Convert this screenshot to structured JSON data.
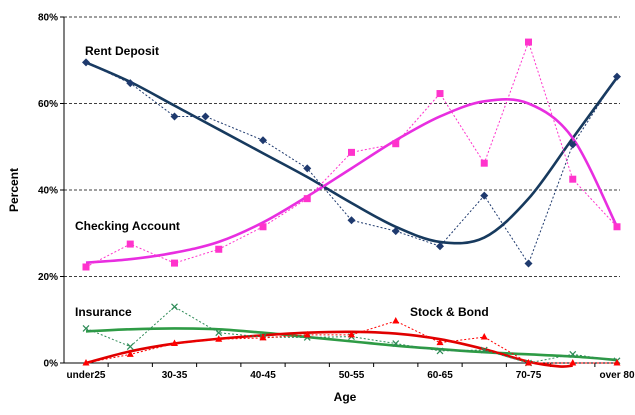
{
  "chart_data": {
    "type": "line",
    "title": "",
    "xlabel": "Age",
    "ylabel": "Percent",
    "ylim": [
      0,
      80
    ],
    "yticks": [
      "0%",
      "20%",
      "40%",
      "60%",
      "80%"
    ],
    "ytick_values": [
      0,
      20,
      40,
      60,
      80
    ],
    "x_positions": 13,
    "xtick_labels": [
      {
        "pos": 0,
        "label": "under25"
      },
      {
        "pos": 2,
        "label": "30-35"
      },
      {
        "pos": 4,
        "label": "40-45"
      },
      {
        "pos": 6,
        "label": "50-55"
      },
      {
        "pos": 8,
        "label": "60-65"
      },
      {
        "pos": 10,
        "label": "70-75"
      },
      {
        "pos": 12,
        "label": "over 80"
      }
    ],
    "grid": "horizontal dashed",
    "series": [
      {
        "name": "Rent Deposit",
        "color": "#1f3a6e",
        "trend_color": "#173a5e",
        "marker": "diamond",
        "points": [
          [
            0,
            69.5
          ],
          [
            1,
            64.7
          ],
          [
            2,
            57.0
          ],
          [
            2.7,
            57.0
          ],
          [
            4,
            51.5
          ],
          [
            5,
            45.0
          ],
          [
            6,
            33.0
          ],
          [
            7,
            30.5
          ],
          [
            8,
            27.0
          ],
          [
            9,
            38.7
          ],
          [
            10,
            23.0
          ],
          [
            11,
            50.5
          ],
          [
            12,
            66.2
          ]
        ],
        "trend": [
          [
            0,
            69.5
          ],
          [
            1,
            65
          ],
          [
            2,
            59.5
          ],
          [
            3,
            54
          ],
          [
            4,
            48.5
          ],
          [
            5,
            43
          ],
          [
            6,
            37
          ],
          [
            7,
            31.5
          ],
          [
            8,
            28
          ],
          [
            9,
            29
          ],
          [
            10,
            38
          ],
          [
            11,
            52
          ],
          [
            12,
            66
          ]
        ],
        "label": "Rent Deposit"
      },
      {
        "name": "Checking Account",
        "color": "#ff33cc",
        "trend_color": "#e82ee0",
        "marker": "square",
        "points": [
          [
            0,
            22.2
          ],
          [
            1,
            27.5
          ],
          [
            2,
            23.1
          ],
          [
            3,
            26.3
          ],
          [
            4,
            31.5
          ],
          [
            5,
            38.0
          ],
          [
            6,
            48.7
          ],
          [
            7,
            50.7
          ],
          [
            8,
            62.3
          ],
          [
            9,
            46.2
          ],
          [
            10,
            74.2
          ],
          [
            11,
            42.5
          ],
          [
            12,
            31.5
          ]
        ],
        "trend": [
          [
            0,
            23.2
          ],
          [
            1,
            24
          ],
          [
            2,
            25.5
          ],
          [
            3,
            28
          ],
          [
            4,
            32.5
          ],
          [
            5,
            38.5
          ],
          [
            6,
            45
          ],
          [
            7,
            51.5
          ],
          [
            8,
            57
          ],
          [
            9,
            60.5
          ],
          [
            10,
            60
          ],
          [
            11,
            52
          ],
          [
            12,
            31.5
          ]
        ],
        "label": "Checking Account"
      },
      {
        "name": "Insurance",
        "color": "#2e8b57",
        "trend_color": "#2e9b45",
        "marker": "x",
        "points": [
          [
            0,
            8.0
          ],
          [
            1,
            3.8
          ],
          [
            2,
            13.0
          ],
          [
            3,
            7.0
          ],
          [
            4,
            6.0
          ],
          [
            5,
            5.9
          ],
          [
            6,
            6.1
          ],
          [
            7,
            4.5
          ],
          [
            8,
            2.8
          ],
          [
            9,
            3.0
          ],
          [
            10,
            0.0
          ],
          [
            11,
            2.0
          ],
          [
            12,
            0.5
          ]
        ],
        "trend": [
          [
            0,
            7.3
          ],
          [
            1,
            7.8
          ],
          [
            2,
            8.0
          ],
          [
            3,
            7.8
          ],
          [
            4,
            7.0
          ],
          [
            5,
            6.0
          ],
          [
            6,
            5.0
          ],
          [
            7,
            4.0
          ],
          [
            8,
            3.2
          ],
          [
            9,
            2.5
          ],
          [
            10,
            2.0
          ],
          [
            11,
            1.5
          ],
          [
            12,
            0.7
          ]
        ],
        "label": "Insurance"
      },
      {
        "name": "Stock & Bond",
        "color": "#ff0000",
        "trend_color": "#e00000",
        "marker": "triangle",
        "points": [
          [
            0,
            0.0
          ],
          [
            1,
            2.0
          ],
          [
            2,
            4.5
          ],
          [
            3,
            5.5
          ],
          [
            4,
            5.8
          ],
          [
            5,
            6.5
          ],
          [
            6,
            6.5
          ],
          [
            7,
            9.7
          ],
          [
            8,
            4.7
          ],
          [
            9,
            6.0
          ],
          [
            10,
            0.0
          ],
          [
            11,
            0.0
          ],
          [
            12,
            0.0
          ]
        ],
        "trend": [
          [
            0,
            0.0
          ],
          [
            1,
            2.7
          ],
          [
            2,
            4.5
          ],
          [
            3,
            5.6
          ],
          [
            4,
            6.4
          ],
          [
            5,
            7.0
          ],
          [
            6,
            7.2
          ],
          [
            7,
            6.8
          ],
          [
            8,
            5.5
          ],
          [
            9,
            3.2
          ],
          [
            10,
            0.3
          ],
          [
            10.7,
            -0.8
          ],
          [
            11,
            -0.6
          ]
        ],
        "label": "Stock & Bond"
      }
    ]
  }
}
